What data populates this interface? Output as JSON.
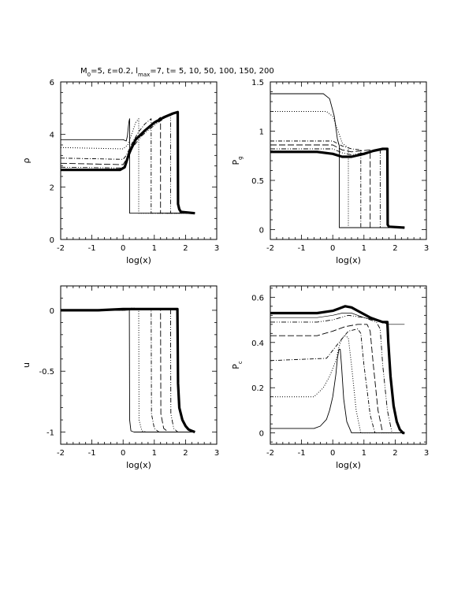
{
  "title": {
    "parts": [
      {
        "t": "M",
        "sub": false
      },
      {
        "t": "0",
        "sub": true
      },
      {
        "t": "=5, ε=0.2, l",
        "sub": false
      },
      {
        "t": "max",
        "sub": true
      },
      {
        "t": "=7, t= 5, 10, 50, 100, 150, 200",
        "sub": false
      }
    ]
  },
  "chart_data": [
    {
      "id": "rho",
      "type": "line",
      "xlabel": "log(x)",
      "ylabel": "ρ",
      "xlim": [
        -2,
        3
      ],
      "ylim": [
        0,
        6
      ],
      "xticks": [
        -2,
        -1,
        0,
        1,
        2,
        3
      ],
      "xtick_labels": [
        "-2",
        "-1",
        "0",
        "1",
        "2",
        "3"
      ],
      "yticks": [
        0,
        2,
        4,
        6
      ],
      "ytick_labels": [
        "0",
        "2",
        "4",
        "6"
      ],
      "series": [
        {
          "style": "solid",
          "x": [
            -2,
            0.0,
            0.1,
            0.14,
            0.17,
            0.19,
            0.21,
            0.21,
            2.3
          ],
          "y": [
            3.8,
            3.8,
            3.75,
            3.95,
            4.3,
            4.5,
            4.6,
            1.0,
            1.0
          ]
        },
        {
          "style": "dotted",
          "x": [
            -2,
            0.0,
            0.15,
            0.3,
            0.4,
            0.5,
            0.5,
            2.3
          ],
          "y": [
            3.5,
            3.45,
            3.6,
            4.1,
            4.45,
            4.6,
            1.0,
            1.0
          ]
        },
        {
          "style": "dash-dot",
          "x": [
            -2,
            0.0,
            0.1,
            0.3,
            0.5,
            0.7,
            0.9,
            0.9,
            2.3
          ],
          "y": [
            3.1,
            3.05,
            3.2,
            3.7,
            4.1,
            4.4,
            4.6,
            1.0,
            1.0
          ]
        },
        {
          "style": "long-dash",
          "x": [
            -2,
            0.0,
            0.1,
            0.3,
            0.6,
            0.9,
            1.2,
            1.2,
            2.3
          ],
          "y": [
            2.9,
            2.85,
            3.05,
            3.6,
            4.05,
            4.4,
            4.65,
            1.0,
            1.0
          ]
        },
        {
          "style": "dash-dot-dot",
          "x": [
            -2,
            0.0,
            0.1,
            0.3,
            0.6,
            1.0,
            1.3,
            1.52,
            1.52,
            2.3
          ],
          "y": [
            2.75,
            2.72,
            2.9,
            3.5,
            3.95,
            4.35,
            4.6,
            4.75,
            1.0,
            1.0
          ]
        },
        {
          "style": "thick",
          "x": [
            -2,
            -0.1,
            0.05,
            0.2,
            0.4,
            0.7,
            1.0,
            1.3,
            1.6,
            1.75,
            1.76,
            1.8,
            1.85,
            2.3
          ],
          "y": [
            2.65,
            2.65,
            2.75,
            3.3,
            3.8,
            4.15,
            4.45,
            4.65,
            4.8,
            4.85,
            1.35,
            1.15,
            1.05,
            1.0
          ]
        }
      ]
    },
    {
      "id": "pg",
      "type": "line",
      "xlabel": "log(x)",
      "ylabel": "P_g",
      "ylabel_parts": [
        {
          "t": "P",
          "sub": false
        },
        {
          "t": "g",
          "sub": true
        }
      ],
      "xlim": [
        -2,
        3
      ],
      "ylim": [
        -0.1,
        1.5
      ],
      "xticks": [
        -2,
        -1,
        0,
        1,
        2,
        3
      ],
      "xtick_labels": [
        "-2",
        "-1",
        "0",
        "1",
        "2",
        "3"
      ],
      "yticks": [
        0,
        0.5,
        1,
        1.5
      ],
      "ytick_labels": [
        "0",
        "0.5",
        "1",
        "1.5"
      ],
      "series": [
        {
          "style": "solid",
          "x": [
            -2,
            -0.3,
            -0.1,
            0.05,
            0.15,
            0.21,
            0.21,
            2.3
          ],
          "y": [
            1.38,
            1.38,
            1.33,
            1.15,
            0.92,
            0.85,
            0.02,
            0.02
          ]
        },
        {
          "style": "dotted",
          "x": [
            -2,
            -0.2,
            0.0,
            0.15,
            0.3,
            0.5,
            0.5,
            2.3
          ],
          "y": [
            1.2,
            1.2,
            1.15,
            1.02,
            0.88,
            0.83,
            0.02,
            0.02
          ]
        },
        {
          "style": "dash-dot",
          "x": [
            -2,
            0.0,
            0.3,
            0.6,
            0.9,
            0.9,
            2.3
          ],
          "y": [
            0.9,
            0.9,
            0.85,
            0.82,
            0.81,
            0.02,
            0.02
          ]
        },
        {
          "style": "long-dash",
          "x": [
            -2,
            0.0,
            0.3,
            0.6,
            0.9,
            1.2,
            1.2,
            2.3
          ],
          "y": [
            0.86,
            0.86,
            0.81,
            0.79,
            0.8,
            0.81,
            0.02,
            0.02
          ]
        },
        {
          "style": "dash-dot-dot",
          "x": [
            -2,
            0.0,
            0.3,
            0.6,
            1.0,
            1.52,
            1.52,
            2.3
          ],
          "y": [
            0.82,
            0.82,
            0.78,
            0.76,
            0.78,
            0.81,
            0.02,
            0.02
          ]
        },
        {
          "style": "thick",
          "x": [
            -2,
            -0.5,
            0.0,
            0.3,
            0.6,
            1.0,
            1.3,
            1.6,
            1.75,
            1.76,
            1.8,
            2.3
          ],
          "y": [
            0.79,
            0.79,
            0.77,
            0.74,
            0.74,
            0.77,
            0.8,
            0.82,
            0.82,
            0.05,
            0.03,
            0.02
          ]
        }
      ]
    },
    {
      "id": "u",
      "type": "line",
      "xlabel": "log(x)",
      "ylabel": "u",
      "xlim": [
        -2,
        3
      ],
      "ylim": [
        -1.1,
        0.2
      ],
      "xticks": [
        -2,
        -1,
        0,
        1,
        2,
        3
      ],
      "xtick_labels": [
        "-2",
        "-1",
        "0",
        "1",
        "2",
        "3"
      ],
      "yticks": [
        -1,
        -0.5,
        0
      ],
      "ytick_labels": [
        "-1",
        "-0.5",
        "0"
      ],
      "series": [
        {
          "style": "solid",
          "x": [
            -2,
            0.0,
            0.2,
            0.21,
            0.25,
            0.35,
            2.3
          ],
          "y": [
            0,
            0,
            0.01,
            -0.9,
            -0.99,
            -1.0,
            -1.0
          ]
        },
        {
          "style": "dotted",
          "x": [
            -2,
            0.0,
            0.3,
            0.5,
            0.51,
            0.6,
            0.75,
            2.3
          ],
          "y": [
            0,
            0,
            0.02,
            0.01,
            -0.9,
            -0.99,
            -1.0,
            -1.0
          ]
        },
        {
          "style": "dash-dot",
          "x": [
            -2,
            0.0,
            0.6,
            0.9,
            0.91,
            1.0,
            1.15,
            2.3
          ],
          "y": [
            0,
            0,
            0.01,
            0.01,
            -0.85,
            -0.97,
            -1.0,
            -1.0
          ]
        },
        {
          "style": "long-dash",
          "x": [
            -2,
            0.0,
            0.8,
            1.2,
            1.21,
            1.3,
            1.45,
            2.3
          ],
          "y": [
            0,
            0,
            0.01,
            0.01,
            -0.85,
            -0.97,
            -1.0,
            -1.0
          ]
        },
        {
          "style": "dash-dot-dot",
          "x": [
            -2,
            0.0,
            1.0,
            1.52,
            1.53,
            1.62,
            1.75,
            2.3
          ],
          "y": [
            0,
            0,
            0.01,
            0.01,
            -0.85,
            -0.97,
            -1.0,
            -1.0
          ]
        },
        {
          "style": "thick",
          "x": [
            -2,
            -0.8,
            0.0,
            0.5,
            1.0,
            1.5,
            1.74,
            1.76,
            1.8,
            1.9,
            2.0,
            2.1,
            2.2,
            2.3
          ],
          "y": [
            0,
            0,
            0.01,
            0.01,
            0.01,
            0.01,
            0.01,
            -0.6,
            -0.8,
            -0.9,
            -0.95,
            -0.98,
            -0.99,
            -1.0
          ]
        }
      ]
    },
    {
      "id": "pc",
      "type": "line",
      "xlabel": "log(x)",
      "ylabel": "P_c",
      "ylabel_parts": [
        {
          "t": "P",
          "sub": false
        },
        {
          "t": "c",
          "sub": true
        }
      ],
      "xlim": [
        -2,
        3
      ],
      "ylim": [
        -0.05,
        0.65
      ],
      "xticks": [
        -2,
        -1,
        0,
        1,
        2,
        3
      ],
      "xtick_labels": [
        "-2",
        "-1",
        "0",
        "1",
        "2",
        "3"
      ],
      "yticks": [
        0,
        0.2,
        0.4,
        0.6
      ],
      "ytick_labels": [
        "0",
        "0.2",
        "0.4",
        "0.6"
      ],
      "series": [
        {
          "style": "solid",
          "x": [
            -2,
            -0.6,
            -0.4,
            -0.2,
            -0.1,
            0.0,
            0.1,
            0.15,
            0.2,
            0.24,
            0.28,
            0.35,
            0.45,
            0.6,
            2.3
          ],
          "y": [
            0.02,
            0.02,
            0.03,
            0.06,
            0.1,
            0.16,
            0.26,
            0.33,
            0.37,
            0.37,
            0.3,
            0.15,
            0.05,
            0.0,
            0.0
          ]
        },
        {
          "style": "dotted",
          "x": [
            -2,
            -0.6,
            -0.3,
            -0.1,
            0.1,
            0.2,
            0.3,
            0.4,
            0.5,
            0.6,
            0.75,
            0.9,
            2.3
          ],
          "y": [
            0.16,
            0.16,
            0.2,
            0.25,
            0.32,
            0.38,
            0.42,
            0.43,
            0.42,
            0.3,
            0.1,
            0.0,
            0.0
          ]
        },
        {
          "style": "dash-dot",
          "x": [
            -2,
            -0.2,
            0.2,
            0.5,
            0.8,
            0.9,
            1.0,
            1.2,
            1.35,
            2.3
          ],
          "y": [
            0.32,
            0.33,
            0.4,
            0.45,
            0.46,
            0.44,
            0.3,
            0.08,
            0.0,
            0.0
          ]
        },
        {
          "style": "long-dash",
          "x": [
            -2,
            -0.5,
            0.0,
            0.4,
            0.8,
            1.1,
            1.2,
            1.3,
            1.45,
            1.6,
            2.3
          ],
          "y": [
            0.43,
            0.43,
            0.45,
            0.47,
            0.48,
            0.48,
            0.45,
            0.3,
            0.1,
            0.0,
            0.0
          ]
        },
        {
          "style": "dash-dot-dot",
          "x": [
            -2,
            -0.5,
            0.0,
            0.5,
            1.0,
            1.4,
            1.52,
            1.6,
            1.75,
            1.9,
            2.3
          ],
          "y": [
            0.49,
            0.49,
            0.5,
            0.52,
            0.51,
            0.49,
            0.46,
            0.3,
            0.1,
            0.0,
            0.0
          ]
        },
        {
          "style": "solid-thin",
          "x": [
            -2,
            -0.5,
            0.0,
            0.3,
            0.6,
            1.0,
            1.3,
            1.6,
            1.75,
            2.3
          ],
          "y": [
            0.51,
            0.51,
            0.52,
            0.53,
            0.53,
            0.51,
            0.5,
            0.49,
            0.48,
            0.48
          ]
        },
        {
          "style": "thick",
          "x": [
            -2,
            -1.0,
            -0.5,
            0.0,
            0.2,
            0.4,
            0.6,
            0.8,
            1.0,
            1.2,
            1.4,
            1.6,
            1.75,
            1.78,
            1.85,
            1.95,
            2.05,
            2.15,
            2.25,
            2.3
          ],
          "y": [
            0.53,
            0.53,
            0.53,
            0.54,
            0.55,
            0.56,
            0.555,
            0.54,
            0.525,
            0.51,
            0.5,
            0.49,
            0.49,
            0.4,
            0.25,
            0.12,
            0.05,
            0.015,
            0.0,
            0.0
          ]
        }
      ]
    }
  ]
}
